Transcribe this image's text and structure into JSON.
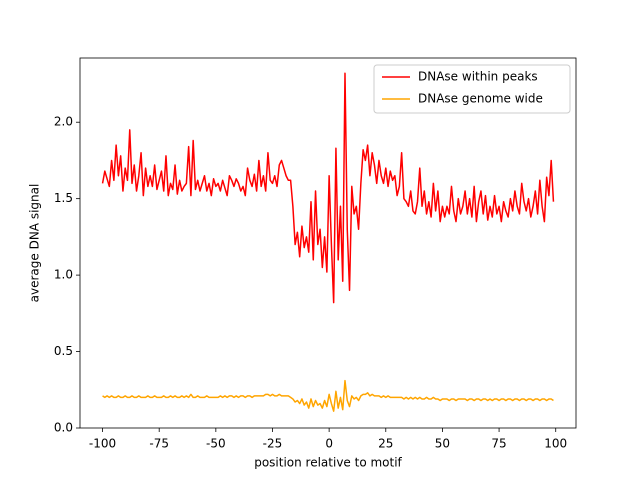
{
  "chart_data": {
    "type": "line",
    "xlabel": "position relative to motif",
    "ylabel": "average DNA signal",
    "x": [
      -100,
      -99,
      -98,
      -97,
      -96,
      -95,
      -94,
      -93,
      -92,
      -91,
      -90,
      -89,
      -88,
      -87,
      -86,
      -85,
      -84,
      -83,
      -82,
      -81,
      -80,
      -79,
      -78,
      -77,
      -76,
      -75,
      -74,
      -73,
      -72,
      -71,
      -70,
      -69,
      -68,
      -67,
      -66,
      -65,
      -64,
      -63,
      -62,
      -61,
      -60,
      -59,
      -58,
      -57,
      -56,
      -55,
      -54,
      -53,
      -52,
      -51,
      -50,
      -49,
      -48,
      -47,
      -46,
      -45,
      -44,
      -43,
      -42,
      -41,
      -40,
      -39,
      -38,
      -37,
      -36,
      -35,
      -34,
      -33,
      -32,
      -31,
      -30,
      -29,
      -28,
      -27,
      -26,
      -25,
      -24,
      -23,
      -22,
      -21,
      -20,
      -19,
      -18,
      -17,
      -16,
      -15,
      -14,
      -13,
      -12,
      -11,
      -10,
      -9,
      -8,
      -7,
      -6,
      -5,
      -4,
      -3,
      -2,
      -1,
      0,
      1,
      2,
      3,
      4,
      5,
      6,
      7,
      8,
      9,
      10,
      11,
      12,
      13,
      14,
      15,
      16,
      17,
      18,
      19,
      20,
      21,
      22,
      23,
      24,
      25,
      26,
      27,
      28,
      29,
      30,
      31,
      32,
      33,
      34,
      35,
      36,
      37,
      38,
      39,
      40,
      41,
      42,
      43,
      44,
      45,
      46,
      47,
      48,
      49,
      50,
      51,
      52,
      53,
      54,
      55,
      56,
      57,
      58,
      59,
      60,
      61,
      62,
      63,
      64,
      65,
      66,
      67,
      68,
      69,
      70,
      71,
      72,
      73,
      74,
      75,
      76,
      77,
      78,
      79,
      80,
      81,
      82,
      83,
      84,
      85,
      86,
      87,
      88,
      89,
      90,
      91,
      92,
      93,
      94,
      95,
      96,
      97,
      98,
      99
    ],
    "series": [
      {
        "name": "DNAse within peaks",
        "color": "#ff0000",
        "values": [
          1.6,
          1.68,
          1.63,
          1.58,
          1.75,
          1.62,
          1.85,
          1.65,
          1.78,
          1.55,
          1.7,
          1.62,
          1.95,
          1.6,
          1.72,
          1.55,
          1.65,
          1.8,
          1.52,
          1.7,
          1.58,
          1.65,
          1.58,
          1.72,
          1.56,
          1.62,
          1.68,
          1.55,
          1.78,
          1.52,
          1.6,
          1.56,
          1.72,
          1.53,
          1.62,
          1.55,
          1.58,
          1.6,
          1.84,
          1.52,
          1.88,
          1.56,
          1.62,
          1.55,
          1.6,
          1.65,
          1.55,
          1.6,
          1.52,
          1.63,
          1.58,
          1.6,
          1.55,
          1.62,
          1.57,
          1.52,
          1.65,
          1.62,
          1.58,
          1.63,
          1.6,
          1.55,
          1.58,
          1.52,
          1.7,
          1.62,
          1.58,
          1.66,
          1.55,
          1.75,
          1.58,
          1.65,
          1.55,
          1.8,
          1.62,
          1.6,
          1.65,
          1.58,
          1.72,
          1.75,
          1.7,
          1.65,
          1.62,
          1.62,
          1.45,
          1.2,
          1.28,
          1.12,
          1.32,
          1.18,
          1.25,
          1.15,
          1.48,
          1.1,
          1.55,
          1.2,
          1.3,
          1.05,
          1.25,
          1.02,
          1.65,
          1.2,
          0.82,
          1.83,
          1.1,
          1.45,
          0.96,
          2.32,
          1.3,
          0.9,
          1.58,
          1.4,
          1.45,
          1.3,
          1.6,
          1.82,
          1.75,
          1.85,
          1.65,
          1.8,
          1.72,
          1.6,
          1.75,
          1.65,
          1.6,
          1.7,
          1.58,
          1.68,
          1.62,
          1.65,
          1.52,
          1.58,
          1.8,
          1.5,
          1.48,
          1.45,
          1.55,
          1.42,
          1.4,
          1.48,
          1.7,
          1.45,
          1.55,
          1.4,
          1.48,
          1.38,
          1.6,
          1.42,
          1.55,
          1.35,
          1.45,
          1.38,
          1.45,
          1.4,
          1.58,
          1.42,
          1.35,
          1.5,
          1.4,
          1.45,
          1.55,
          1.4,
          1.5,
          1.38,
          1.58,
          1.35,
          1.48,
          1.55,
          1.4,
          1.52,
          1.36,
          1.45,
          1.38,
          1.52,
          1.4,
          1.45,
          1.35,
          1.48,
          1.42,
          1.38,
          1.5,
          1.42,
          1.55,
          1.45,
          1.4,
          1.6,
          1.48,
          1.42,
          1.5,
          1.38,
          1.45,
          1.55,
          1.4,
          1.62,
          1.45,
          1.35,
          1.64,
          1.52,
          1.75,
          1.48
        ]
      },
      {
        "name": "DNAse genome wide",
        "color": "#ffa500",
        "values": [
          0.21,
          0.2,
          0.21,
          0.2,
          0.21,
          0.2,
          0.2,
          0.21,
          0.2,
          0.2,
          0.21,
          0.2,
          0.2,
          0.21,
          0.2,
          0.2,
          0.21,
          0.2,
          0.2,
          0.2,
          0.21,
          0.2,
          0.2,
          0.21,
          0.2,
          0.2,
          0.2,
          0.21,
          0.2,
          0.2,
          0.21,
          0.2,
          0.21,
          0.2,
          0.2,
          0.21,
          0.2,
          0.21,
          0.2,
          0.22,
          0.2,
          0.2,
          0.21,
          0.2,
          0.2,
          0.2,
          0.21,
          0.2,
          0.2,
          0.2,
          0.2,
          0.2,
          0.21,
          0.2,
          0.21,
          0.2,
          0.21,
          0.21,
          0.2,
          0.21,
          0.2,
          0.21,
          0.21,
          0.2,
          0.21,
          0.21,
          0.2,
          0.21,
          0.21,
          0.21,
          0.21,
          0.21,
          0.22,
          0.22,
          0.21,
          0.22,
          0.21,
          0.21,
          0.22,
          0.21,
          0.21,
          0.21,
          0.21,
          0.2,
          0.19,
          0.17,
          0.18,
          0.16,
          0.19,
          0.15,
          0.17,
          0.13,
          0.19,
          0.14,
          0.18,
          0.15,
          0.16,
          0.13,
          0.18,
          0.14,
          0.22,
          0.16,
          0.11,
          0.24,
          0.13,
          0.2,
          0.12,
          0.31,
          0.18,
          0.14,
          0.21,
          0.19,
          0.2,
          0.18,
          0.21,
          0.22,
          0.22,
          0.23,
          0.21,
          0.22,
          0.21,
          0.21,
          0.21,
          0.2,
          0.21,
          0.2,
          0.21,
          0.2,
          0.2,
          0.2,
          0.2,
          0.2,
          0.2,
          0.19,
          0.2,
          0.19,
          0.2,
          0.19,
          0.2,
          0.19,
          0.2,
          0.19,
          0.19,
          0.2,
          0.19,
          0.19,
          0.2,
          0.19,
          0.19,
          0.18,
          0.19,
          0.19,
          0.19,
          0.18,
          0.19,
          0.19,
          0.18,
          0.19,
          0.19,
          0.19,
          0.19,
          0.18,
          0.19,
          0.19,
          0.18,
          0.19,
          0.19,
          0.18,
          0.19,
          0.19,
          0.18,
          0.19,
          0.18,
          0.19,
          0.19,
          0.18,
          0.19,
          0.19,
          0.18,
          0.19,
          0.19,
          0.18,
          0.19,
          0.19,
          0.18,
          0.19,
          0.19,
          0.18,
          0.19,
          0.19,
          0.18,
          0.19,
          0.19,
          0.18,
          0.19,
          0.19,
          0.18,
          0.19,
          0.19,
          0.18
        ]
      }
    ],
    "xlim": [
      -109.95,
      108.95
    ],
    "ylim": [
      0,
      2.42
    ],
    "xticks": [
      -100,
      -75,
      -50,
      -25,
      0,
      25,
      50,
      75,
      100
    ],
    "yticks": [
      {
        "value": 0,
        "label": "0.0"
      },
      0.5,
      {
        "value": 1,
        "label": "1.0"
      },
      1.5,
      {
        "value": 2,
        "label": "2.0"
      }
    ],
    "legend": "upper right"
  }
}
